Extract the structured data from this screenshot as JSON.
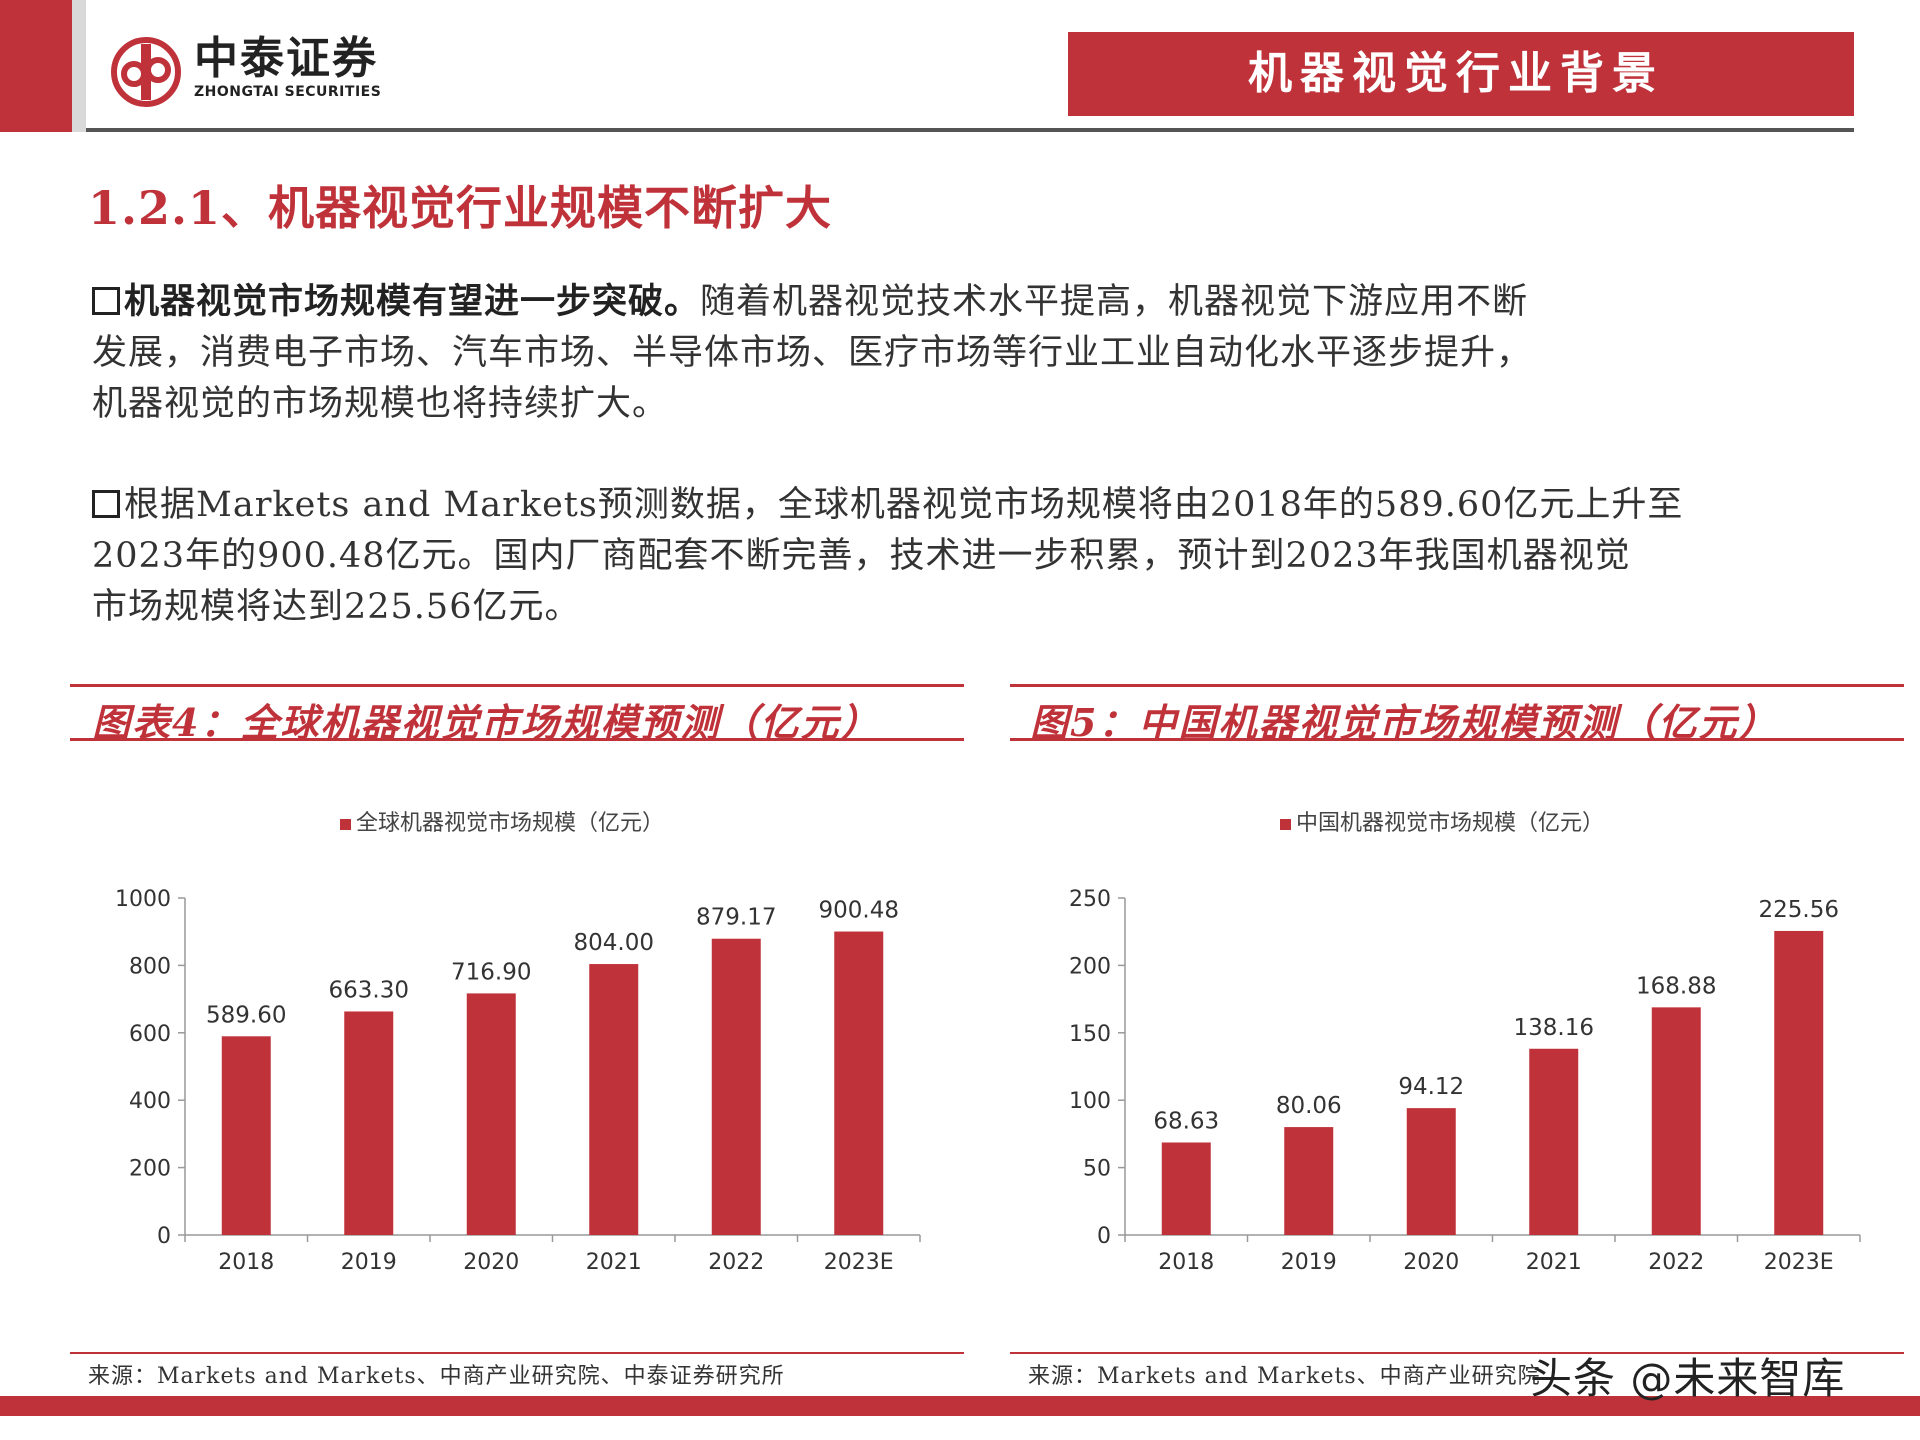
{
  "header": {
    "logo_cn": "中泰证券",
    "logo_en": "ZHONGTAI SECURITIES",
    "section_tag": "机器视觉行业背景"
  },
  "section_title": "1.2.1、机器视觉行业规模不断扩大",
  "paragraphs": [
    {
      "lead": "机器视觉市场规模有望进一步突破。",
      "line1_rest": "随着机器视觉技术水平提高，机器视觉下游应用不断",
      "line2": "发展，消费电子市场、汽车市场、半导体市场、医疗市场等行业工业自动化水平逐步提升，",
      "line3": "机器视觉的市场规模也将持续扩大。"
    },
    {
      "line1": "根据Markets and Markets预测数据，全球机器视觉市场规模将由2018年的589.60亿元上升至",
      "line2": "2023年的900.48亿元。国内厂商配套不断完善，技术进一步积累，预计到2023年我国机器视觉",
      "line3": "市场规模将达到225.56亿元。"
    }
  ],
  "figures": [
    {
      "title": "图表4：全球机器视觉市场规模预测（亿元）",
      "source": "来源：Markets and Markets、中商产业研究院、中泰证券研究所"
    },
    {
      "title": "图5：中国机器视觉市场规模预测（亿元）",
      "source": "来源：Markets and Markets、中商产业研究院"
    }
  ],
  "watermark": "头条 @未来智库",
  "colors": {
    "accent": "#c0323a",
    "bar": "#c0323a"
  },
  "chart_data": [
    {
      "type": "bar",
      "legend": "全球机器视觉市场规模（亿元）",
      "categories": [
        "2018",
        "2019",
        "2020",
        "2021",
        "2022",
        "2023E"
      ],
      "values": [
        589.6,
        663.3,
        716.9,
        804.0,
        879.17,
        900.48
      ],
      "data_labels": [
        "589.60",
        "663.30",
        "716.90",
        "804.00",
        "879.17",
        "900.48"
      ],
      "yticks": [
        "0",
        "200",
        "400",
        "600",
        "800",
        "1000"
      ],
      "ylim": [
        0,
        1000
      ],
      "legend_position": "top-center",
      "grid": false
    },
    {
      "type": "bar",
      "legend": "中国机器视觉市场规模（亿元）",
      "categories": [
        "2018",
        "2019",
        "2020",
        "2021",
        "2022",
        "2023E"
      ],
      "values": [
        68.63,
        80.06,
        94.12,
        138.16,
        168.88,
        225.56
      ],
      "data_labels": [
        "68.63",
        "80.06",
        "94.12",
        "138.16",
        "168.88",
        "225.56"
      ],
      "yticks": [
        "0",
        "50",
        "100",
        "150",
        "200",
        "250"
      ],
      "ylim": [
        0,
        250
      ],
      "legend_position": "top-center",
      "grid": false
    }
  ]
}
